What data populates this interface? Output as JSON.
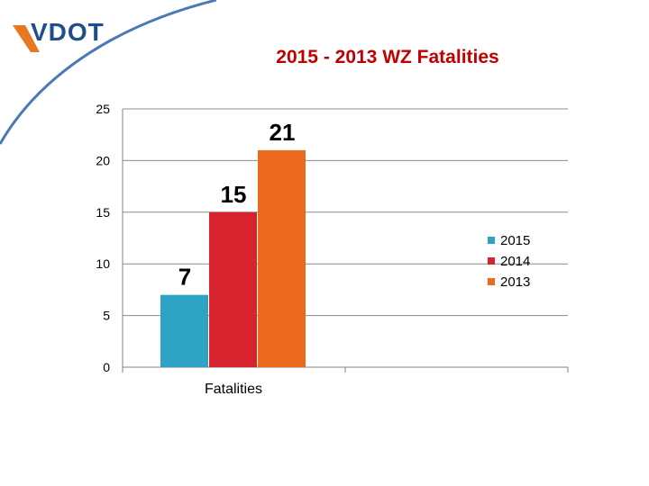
{
  "logo": {
    "text": "VDOT",
    "accent_color": "#4a7ab5"
  },
  "chart_data": {
    "type": "bar",
    "title": "2015 - 2013 WZ Fatalities",
    "categories": [
      "Fatalities"
    ],
    "series": [
      {
        "name": "2015",
        "values": [
          7
        ],
        "color": "#2fa3c4"
      },
      {
        "name": "2014",
        "values": [
          15
        ],
        "color": "#d7232e"
      },
      {
        "name": "2013",
        "values": [
          21
        ],
        "color": "#ec6a1e"
      }
    ],
    "ylim": [
      0,
      25
    ],
    "yticks": [
      0,
      5,
      10,
      15,
      20,
      25
    ],
    "grid": true,
    "legend": "right",
    "data_labels": true
  }
}
